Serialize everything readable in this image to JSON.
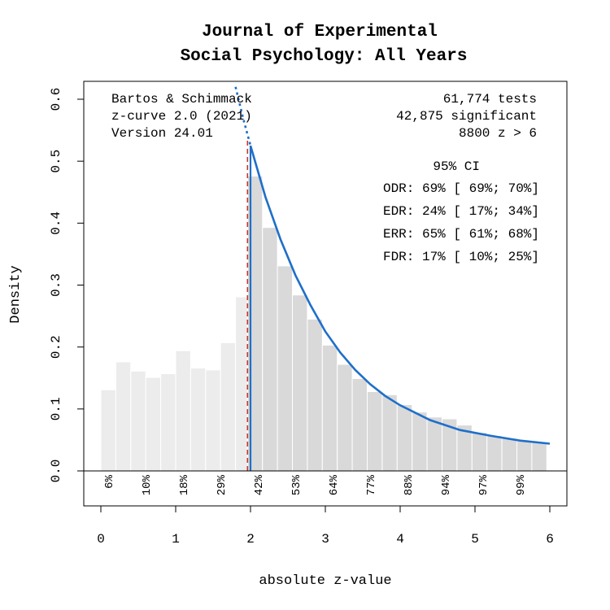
{
  "chart_data": {
    "type": "bar",
    "title": [
      "Journal of Experimental",
      "Social Psychology: All Years"
    ],
    "xlabel": "absolute z-value",
    "ylabel": "Density",
    "xlim": [
      0,
      6
    ],
    "ylim": [
      0,
      0.6
    ],
    "x_ticks": [
      "0",
      "1",
      "2",
      "3",
      "4",
      "5",
      "6"
    ],
    "y_ticks": [
      "0.0",
      "0.1",
      "0.2",
      "0.3",
      "0.4",
      "0.5",
      "0.6"
    ],
    "bin_width": 0.2,
    "bins_nonsignificant": {
      "starts": [
        0.0,
        0.2,
        0.4,
        0.6,
        0.8,
        1.0,
        1.2,
        1.4,
        1.6,
        1.8
      ],
      "values": [
        0.131,
        0.176,
        0.161,
        0.151,
        0.157,
        0.194,
        0.166,
        0.163,
        0.207,
        0.281
      ],
      "color": "#ececec"
    },
    "bins_significant": {
      "starts": [
        1.96,
        2.16,
        2.36,
        2.56,
        2.76,
        2.96,
        3.16,
        3.36,
        3.56,
        3.76,
        3.96,
        4.16,
        4.36,
        4.56,
        4.76,
        4.96,
        5.16,
        5.36,
        5.56,
        5.76
      ],
      "values": [
        0.476,
        0.393,
        0.331,
        0.284,
        0.245,
        0.203,
        0.172,
        0.149,
        0.128,
        0.123,
        0.107,
        0.095,
        0.087,
        0.084,
        0.074,
        0.062,
        0.057,
        0.053,
        0.048,
        0.047
      ],
      "color": "#d9d9d9"
    },
    "curve": {
      "name": "z-curve fit",
      "color": "#1f6fc9",
      "solid_from": 2.0,
      "x": [
        1.8,
        1.9,
        2.0,
        2.2,
        2.4,
        2.6,
        2.8,
        3.0,
        3.2,
        3.4,
        3.6,
        3.8,
        4.0,
        4.4,
        4.8,
        5.2,
        5.6,
        6.0
      ],
      "y": [
        0.62,
        0.57,
        0.525,
        0.442,
        0.374,
        0.316,
        0.268,
        0.225,
        0.191,
        0.163,
        0.14,
        0.121,
        0.106,
        0.082,
        0.066,
        0.057,
        0.049,
        0.044
      ]
    },
    "significance_line": {
      "x": 1.96,
      "color": "#c0392b",
      "style": "dashed"
    },
    "power_labels": [
      {
        "x": 0.1,
        "label": "6%"
      },
      {
        "x": 0.6,
        "label": "10%"
      },
      {
        "x": 1.1,
        "label": "18%"
      },
      {
        "x": 1.6,
        "label": "29%"
      },
      {
        "x": 2.1,
        "label": "42%"
      },
      {
        "x": 2.6,
        "label": "53%"
      },
      {
        "x": 3.1,
        "label": "64%"
      },
      {
        "x": 3.6,
        "label": "77%"
      },
      {
        "x": 4.1,
        "label": "88%"
      },
      {
        "x": 4.6,
        "label": "94%"
      },
      {
        "x": 5.1,
        "label": "97%"
      },
      {
        "x": 5.6,
        "label": "99%"
      }
    ],
    "annotation_left": [
      "Bartos & Schimmack",
      "z-curve 2.0 (2021)",
      "Version 24.01"
    ],
    "annotation_right": [
      "61,774 tests",
      "42,875 significant",
      "8800 z > 6"
    ],
    "ci_header": "95% CI",
    "ci_rows": [
      "ODR: 69% [ 69%; 70%]",
      "EDR: 24% [ 17%; 34%]",
      "ERR: 65% [ 61%; 68%]",
      "FDR: 17% [ 10%; 25%]"
    ]
  }
}
